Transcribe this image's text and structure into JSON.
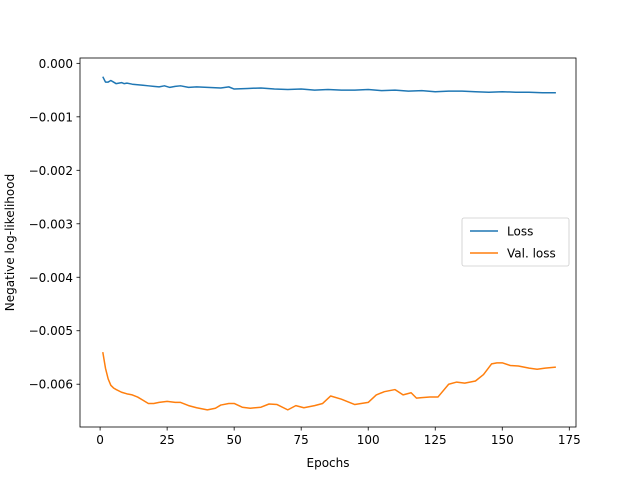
{
  "chart_data": {
    "type": "line",
    "xlabel": "Epochs",
    "ylabel": "Negative log-likelihood",
    "xlim": [
      -7.5,
      177.5
    ],
    "ylim": [
      -0.0068,
      0.0001
    ],
    "xticks": [
      0,
      25,
      50,
      75,
      100,
      125,
      150,
      175
    ],
    "yticks": [
      0.0,
      -0.001,
      -0.002,
      -0.003,
      -0.004,
      -0.005,
      -0.006
    ],
    "ytick_labels": [
      "0.000",
      "−0.001",
      "−0.002",
      "−0.003",
      "−0.004",
      "−0.005",
      "−0.006"
    ],
    "grid": false,
    "legend_position": "center-right",
    "series": [
      {
        "name": "Loss",
        "color": "#1f77b4",
        "x": [
          1,
          2,
          3,
          4,
          5,
          6,
          7,
          8,
          9,
          10,
          12,
          14,
          16,
          18,
          20,
          22,
          24,
          26,
          28,
          30,
          33,
          36,
          40,
          45,
          48,
          50,
          55,
          60,
          65,
          70,
          75,
          80,
          85,
          90,
          95,
          100,
          105,
          110,
          115,
          120,
          125,
          130,
          135,
          140,
          145,
          150,
          155,
          160,
          165,
          170
        ],
        "y": [
          -0.00025,
          -0.00035,
          -0.00035,
          -0.00032,
          -0.00035,
          -0.00038,
          -0.00037,
          -0.00036,
          -0.00038,
          -0.00037,
          -0.00039,
          -0.0004,
          -0.00041,
          -0.00042,
          -0.00043,
          -0.00044,
          -0.00042,
          -0.00045,
          -0.00043,
          -0.00042,
          -0.00045,
          -0.00044,
          -0.00045,
          -0.00046,
          -0.00044,
          -0.00048,
          -0.00047,
          -0.00046,
          -0.00048,
          -0.00049,
          -0.00048,
          -0.0005,
          -0.00049,
          -0.0005,
          -0.0005,
          -0.00049,
          -0.00051,
          -0.0005,
          -0.00052,
          -0.00051,
          -0.00053,
          -0.00052,
          -0.00052,
          -0.00053,
          -0.00054,
          -0.00053,
          -0.00054,
          -0.00054,
          -0.00055,
          -0.00055
        ]
      },
      {
        "name": "Val. loss",
        "color": "#ff7f0e",
        "x": [
          1,
          2,
          3,
          4,
          5,
          6,
          8,
          10,
          12,
          14,
          16,
          18,
          20,
          22,
          25,
          28,
          30,
          33,
          36,
          40,
          43,
          45,
          48,
          50,
          53,
          56,
          60,
          63,
          66,
          70,
          73,
          76,
          80,
          83,
          86,
          90,
          95,
          100,
          103,
          106,
          110,
          113,
          116,
          118,
          120,
          123,
          126,
          130,
          133,
          136,
          140,
          143,
          146,
          148,
          150,
          153,
          156,
          160,
          163,
          166,
          170
        ],
        "y": [
          -0.0054,
          -0.0057,
          -0.0059,
          -0.00602,
          -0.00607,
          -0.0061,
          -0.00615,
          -0.00618,
          -0.0062,
          -0.00624,
          -0.0063,
          -0.00636,
          -0.00636,
          -0.00634,
          -0.00632,
          -0.00634,
          -0.00634,
          -0.0064,
          -0.00644,
          -0.00648,
          -0.00645,
          -0.00639,
          -0.00636,
          -0.00636,
          -0.00643,
          -0.00645,
          -0.00643,
          -0.00637,
          -0.00638,
          -0.00648,
          -0.0064,
          -0.00644,
          -0.0064,
          -0.00636,
          -0.00622,
          -0.00628,
          -0.00638,
          -0.00634,
          -0.0062,
          -0.00614,
          -0.0061,
          -0.0062,
          -0.00616,
          -0.00626,
          -0.00625,
          -0.00624,
          -0.00624,
          -0.006,
          -0.00596,
          -0.00598,
          -0.00594,
          -0.00582,
          -0.00562,
          -0.0056,
          -0.0056,
          -0.00565,
          -0.00566,
          -0.0057,
          -0.00572,
          -0.0057,
          -0.00568
        ]
      }
    ]
  }
}
